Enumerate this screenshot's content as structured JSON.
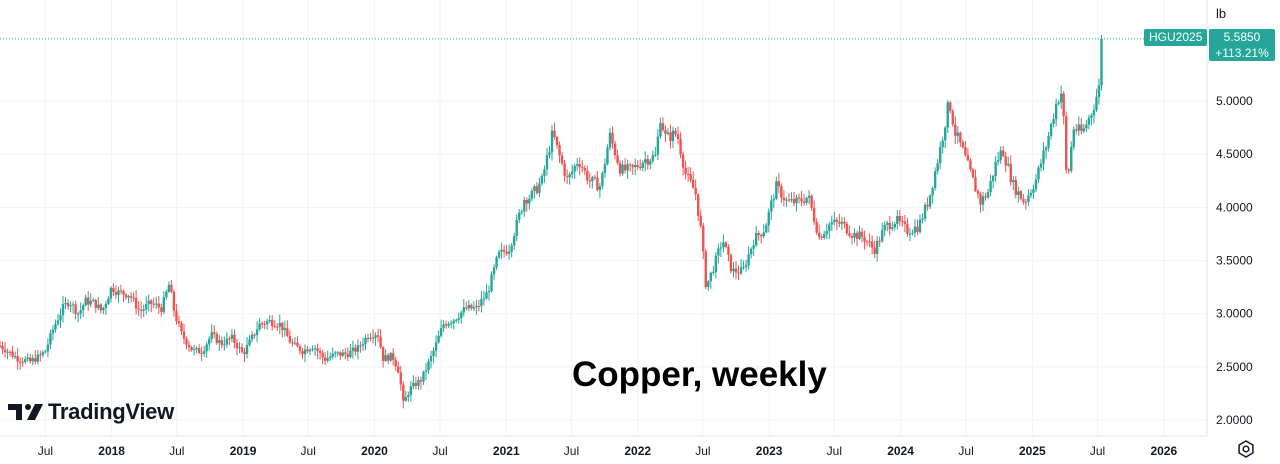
{
  "watermark_title": "Copper, weekly",
  "brand": {
    "name": "TradingView",
    "logo_icon": "tradingview-logo-icon"
  },
  "axis_unit": "lb",
  "symbol": "HGU2025",
  "last_price": "5.5850",
  "change_pct": "+113.21%",
  "colors": {
    "up": "#26a69a",
    "down": "#ef5350",
    "grid": "#f0f3fa",
    "price_line": "#26a69a"
  },
  "settings_icon": "settings-gear-icon",
  "chart_data": {
    "type": "candlestick",
    "interval": "weekly",
    "x_axis_ticks": [
      {
        "label": "Jul",
        "date": "2017-07-01",
        "major": false
      },
      {
        "label": "2018",
        "date": "2018-01-01",
        "major": true
      },
      {
        "label": "Jul",
        "date": "2018-07-01",
        "major": false
      },
      {
        "label": "2019",
        "date": "2019-01-01",
        "major": true
      },
      {
        "label": "Jul",
        "date": "2019-07-01",
        "major": false
      },
      {
        "label": "2020",
        "date": "2020-01-01",
        "major": true
      },
      {
        "label": "Jul",
        "date": "2020-07-01",
        "major": false
      },
      {
        "label": "2021",
        "date": "2021-01-01",
        "major": true
      },
      {
        "label": "Jul",
        "date": "2021-07-01",
        "major": false
      },
      {
        "label": "2022",
        "date": "2022-01-01",
        "major": true
      },
      {
        "label": "Jul",
        "date": "2022-07-01",
        "major": false
      },
      {
        "label": "2023",
        "date": "2023-01-01",
        "major": true
      },
      {
        "label": "Jul",
        "date": "2023-07-01",
        "major": false
      },
      {
        "label": "2024",
        "date": "2024-01-01",
        "major": true
      },
      {
        "label": "Jul",
        "date": "2024-07-01",
        "major": false
      },
      {
        "label": "2025",
        "date": "2025-01-01",
        "major": true
      },
      {
        "label": "Jul",
        "date": "2025-07-01",
        "major": false
      },
      {
        "label": "2026",
        "date": "2026-01-01",
        "major": true
      }
    ],
    "y_axis_ticks": [
      "2.0000",
      "2.5000",
      "3.0000",
      "3.5000",
      "4.0000",
      "4.5000",
      "5.0000"
    ],
    "ylim": [
      1.85,
      5.95
    ],
    "xlim": [
      "2017-02-25",
      "2026-05-01"
    ],
    "grid": true,
    "last_price": 5.585,
    "price_path": [
      [
        "2017-02-25",
        2.7
      ],
      [
        "2017-04-15",
        2.58
      ],
      [
        "2017-05-20",
        2.55
      ],
      [
        "2017-06-15",
        2.6
      ],
      [
        "2017-07-01",
        2.65
      ],
      [
        "2017-07-25",
        2.88
      ],
      [
        "2017-08-20",
        3.06
      ],
      [
        "2017-09-05",
        3.12
      ],
      [
        "2017-10-01",
        3.0
      ],
      [
        "2017-10-20",
        3.12
      ],
      [
        "2017-11-15",
        3.1
      ],
      [
        "2017-12-05",
        3.02
      ],
      [
        "2018-01-01",
        3.25
      ],
      [
        "2018-01-20",
        3.2
      ],
      [
        "2018-02-20",
        3.18
      ],
      [
        "2018-03-20",
        3.02
      ],
      [
        "2018-04-20",
        3.1
      ],
      [
        "2018-05-20",
        3.05
      ],
      [
        "2018-06-10",
        3.28
      ],
      [
        "2018-06-25",
        3.0
      ],
      [
        "2018-07-15",
        2.8
      ],
      [
        "2018-08-15",
        2.65
      ],
      [
        "2018-09-10",
        2.65
      ],
      [
        "2018-10-05",
        2.8
      ],
      [
        "2018-11-01",
        2.72
      ],
      [
        "2018-12-01",
        2.77
      ],
      [
        "2019-01-01",
        2.62
      ],
      [
        "2019-02-15",
        2.9
      ],
      [
        "2019-03-15",
        2.93
      ],
      [
        "2019-04-15",
        2.9
      ],
      [
        "2019-05-15",
        2.72
      ],
      [
        "2019-06-15",
        2.65
      ],
      [
        "2019-07-15",
        2.7
      ],
      [
        "2019-08-15",
        2.57
      ],
      [
        "2019-09-15",
        2.62
      ],
      [
        "2019-10-15",
        2.62
      ],
      [
        "2019-11-15",
        2.67
      ],
      [
        "2019-12-15",
        2.8
      ],
      [
        "2020-01-10",
        2.82
      ],
      [
        "2020-01-25",
        2.58
      ],
      [
        "2020-02-20",
        2.6
      ],
      [
        "2020-03-10",
        2.45
      ],
      [
        "2020-03-20",
        2.15
      ],
      [
        "2020-04-10",
        2.3
      ],
      [
        "2020-05-10",
        2.38
      ],
      [
        "2020-06-10",
        2.62
      ],
      [
        "2020-07-10",
        2.9
      ],
      [
        "2020-08-10",
        2.95
      ],
      [
        "2020-09-10",
        3.05
      ],
      [
        "2020-10-10",
        3.05
      ],
      [
        "2020-11-10",
        3.2
      ],
      [
        "2020-12-10",
        3.55
      ],
      [
        "2021-01-10",
        3.62
      ],
      [
        "2021-02-20",
        4.08
      ],
      [
        "2021-03-10",
        4.1
      ],
      [
        "2021-04-10",
        4.25
      ],
      [
        "2021-05-10",
        4.7
      ],
      [
        "2021-05-25",
        4.52
      ],
      [
        "2021-06-20",
        4.25
      ],
      [
        "2021-07-20",
        4.45
      ],
      [
        "2021-08-20",
        4.25
      ],
      [
        "2021-09-20",
        4.2
      ],
      [
        "2021-10-15",
        4.68
      ],
      [
        "2021-11-15",
        4.35
      ],
      [
        "2021-12-15",
        4.35
      ],
      [
        "2022-01-20",
        4.45
      ],
      [
        "2022-02-20",
        4.48
      ],
      [
        "2022-03-05",
        4.85
      ],
      [
        "2022-03-20",
        4.65
      ],
      [
        "2022-04-20",
        4.7
      ],
      [
        "2022-05-15",
        4.3
      ],
      [
        "2022-06-10",
        4.15
      ],
      [
        "2022-06-25",
        3.8
      ],
      [
        "2022-07-10",
        3.25
      ],
      [
        "2022-08-01",
        3.45
      ],
      [
        "2022-08-25",
        3.7
      ],
      [
        "2022-09-20",
        3.4
      ],
      [
        "2022-10-20",
        3.4
      ],
      [
        "2022-11-20",
        3.7
      ],
      [
        "2022-12-20",
        3.8
      ],
      [
        "2023-01-20",
        4.2
      ],
      [
        "2023-02-20",
        4.05
      ],
      [
        "2023-03-20",
        4.05
      ],
      [
        "2023-04-20",
        4.1
      ],
      [
        "2023-05-20",
        3.72
      ],
      [
        "2023-06-20",
        3.85
      ],
      [
        "2023-07-20",
        3.85
      ],
      [
        "2023-08-20",
        3.75
      ],
      [
        "2023-09-20",
        3.72
      ],
      [
        "2023-10-20",
        3.6
      ],
      [
        "2023-11-20",
        3.82
      ],
      [
        "2023-12-20",
        3.88
      ],
      [
        "2024-01-20",
        3.78
      ],
      [
        "2024-02-20",
        3.82
      ],
      [
        "2024-03-20",
        4.08
      ],
      [
        "2024-04-20",
        4.55
      ],
      [
        "2024-05-15",
        5.0
      ],
      [
        "2024-06-01",
        4.7
      ],
      [
        "2024-06-20",
        4.55
      ],
      [
        "2024-07-15",
        4.3
      ],
      [
        "2024-08-10",
        4.05
      ],
      [
        "2024-09-01",
        4.15
      ],
      [
        "2024-09-20",
        4.4
      ],
      [
        "2024-10-10",
        4.55
      ],
      [
        "2024-11-10",
        4.2
      ],
      [
        "2024-12-10",
        4.05
      ],
      [
        "2025-01-10",
        4.25
      ],
      [
        "2025-02-10",
        4.6
      ],
      [
        "2025-03-10",
        5.0
      ],
      [
        "2025-03-25",
        5.1
      ],
      [
        "2025-04-07",
        4.2
      ],
      [
        "2025-04-25",
        4.75
      ],
      [
        "2025-05-20",
        4.7
      ],
      [
        "2025-06-15",
        4.9
      ],
      [
        "2025-07-05",
        5.12
      ],
      [
        "2025-07-12",
        5.585
      ]
    ]
  }
}
